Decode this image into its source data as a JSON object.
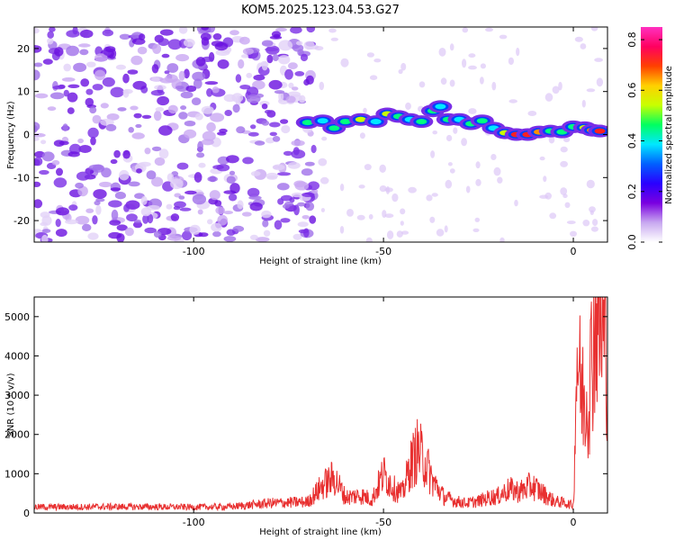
{
  "title": "KOM5.2025.123.04.53.G27",
  "chart_data": [
    {
      "type": "heatmap",
      "xlabel": "Height of straight line (km)",
      "ylabel": "Frequency (Hz)",
      "xlim": [
        -142,
        9
      ],
      "ylim": [
        -25,
        25
      ],
      "xticks": [
        -100,
        -50,
        0
      ],
      "yticks": [
        -20,
        -10,
        0,
        10,
        20
      ],
      "colorbar": {
        "label": "Normalized spectral amplitude",
        "range": [
          0,
          0.85
        ],
        "ticks": [
          0.0,
          0.2,
          0.4,
          0.6,
          0.8
        ],
        "colors": [
          "#ffffff",
          "#c8a8f0",
          "#7a00e0",
          "#2a00ff",
          "#0060ff",
          "#00e8ff",
          "#00ff60",
          "#c8ff00",
          "#ffd000",
          "#ff4000",
          "#ff0060",
          "#ff30c0"
        ]
      },
      "noise_region_x": [
        -142,
        -68
      ],
      "signal_track": [
        {
          "x": -70,
          "y": 2.8,
          "amp": 0.45
        },
        {
          "x": -66,
          "y": 3.2,
          "amp": 0.35
        },
        {
          "x": -63,
          "y": 1.5,
          "amp": 0.5
        },
        {
          "x": -60,
          "y": 3.0,
          "amp": 0.45
        },
        {
          "x": -56,
          "y": 3.5,
          "amp": 0.55
        },
        {
          "x": -52,
          "y": 3.0,
          "amp": 0.35
        },
        {
          "x": -49,
          "y": 4.8,
          "amp": 0.55
        },
        {
          "x": -46,
          "y": 4.2,
          "amp": 0.5
        },
        {
          "x": -43,
          "y": 3.5,
          "amp": 0.4
        },
        {
          "x": -40,
          "y": 3.0,
          "amp": 0.45
        },
        {
          "x": -37,
          "y": 5.5,
          "amp": 0.5
        },
        {
          "x": -35,
          "y": 6.5,
          "amp": 0.4
        },
        {
          "x": -33,
          "y": 3.5,
          "amp": 0.45
        },
        {
          "x": -30,
          "y": 3.5,
          "amp": 0.4
        },
        {
          "x": -27,
          "y": 2.5,
          "amp": 0.45
        },
        {
          "x": -24,
          "y": 3.2,
          "amp": 0.5
        },
        {
          "x": -21,
          "y": 1.5,
          "amp": 0.4
        },
        {
          "x": -18,
          "y": 0.4,
          "amp": 0.55
        },
        {
          "x": -15,
          "y": 0.0,
          "amp": 0.85
        },
        {
          "x": -12,
          "y": 0.0,
          "amp": 0.8
        },
        {
          "x": -9,
          "y": 0.6,
          "amp": 0.7
        },
        {
          "x": -6,
          "y": 0.8,
          "amp": 0.5
        },
        {
          "x": -3,
          "y": 0.6,
          "amp": 0.45
        },
        {
          "x": 0,
          "y": 1.8,
          "amp": 0.45
        },
        {
          "x": 3,
          "y": 1.6,
          "amp": 0.6
        },
        {
          "x": 5,
          "y": 1.0,
          "amp": 0.75
        },
        {
          "x": 7,
          "y": 0.8,
          "amp": 0.8
        }
      ]
    },
    {
      "type": "line",
      "xlabel": "Height of straight line (km)",
      "ylabel": "SNR (10 * v/v)",
      "xlim": [
        -142,
        9
      ],
      "ylim": [
        0,
        5500
      ],
      "xticks": [
        -100,
        -50,
        0
      ],
      "yticks": [
        0,
        1000,
        2000,
        3000,
        4000,
        5000
      ],
      "series": [
        {
          "color": "#e83030",
          "x": [
            -142,
            -120,
            -100,
            -90,
            -80,
            -70,
            -66,
            -63,
            -60,
            -56,
            -53,
            -50,
            -47,
            -45,
            -43,
            -41,
            -39,
            -37,
            -34,
            -31,
            -28,
            -25,
            -22,
            -20,
            -17,
            -14,
            -11,
            -8,
            -5,
            -2,
            0,
            1,
            2,
            3,
            4,
            5,
            6,
            7,
            8,
            9
          ],
          "y": [
            150,
            160,
            150,
            160,
            250,
            280,
            700,
            900,
            400,
            450,
            350,
            1000,
            600,
            500,
            1200,
            1600,
            1300,
            800,
            400,
            300,
            250,
            300,
            400,
            420,
            600,
            550,
            700,
            500,
            300,
            250,
            200,
            4200,
            3100,
            2900,
            3000,
            4200,
            5300,
            4800,
            4400,
            4000
          ]
        }
      ]
    }
  ]
}
